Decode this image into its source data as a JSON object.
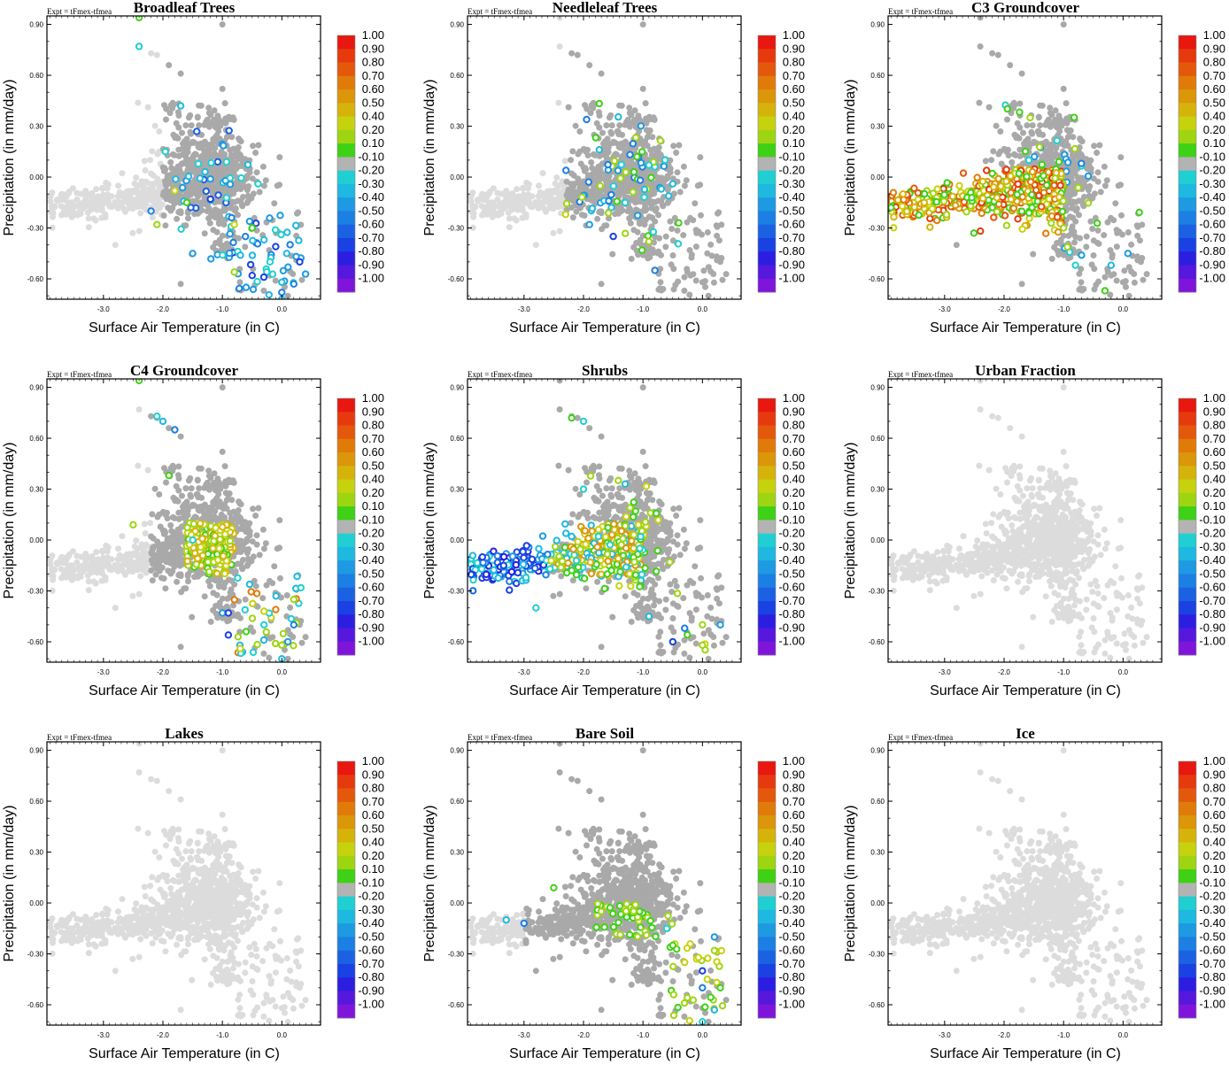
{
  "figure": {
    "expt_label": "Expt = tFmex-tfmea",
    "colorbar": {
      "levels": [
        "1.00",
        "0.90",
        "0.80",
        "0.70",
        "0.60",
        "0.50",
        "0.40",
        "0.20",
        "0.10",
        "-0.10",
        "-0.20",
        "-0.30",
        "-0.40",
        "-0.50",
        "-0.60",
        "-0.70",
        "-0.80",
        "-0.90",
        "-1.00"
      ],
      "colors": [
        "#e8170f",
        "#e63a0e",
        "#e4580c",
        "#e07b0a",
        "#db960a",
        "#d6b30b",
        "#c6d20d",
        "#9ed512",
        "#3ed115",
        "#b3b3b3",
        "#20cfd2",
        "#1fb8e0",
        "#1d9ae2",
        "#1c7fe3",
        "#1b62e3",
        "#1a41e2",
        "#2c1ee0",
        "#5618dd",
        "#7f15da"
      ]
    }
  },
  "chart_data": [
    {
      "type": "scatter",
      "title": "Broadleaf Trees",
      "xlabel": "Surface Air Temperature (in C)",
      "ylabel": "Precipitation (in mm/day)",
      "xlim": [
        -3.95,
        0.65
      ],
      "ylim": [
        -0.72,
        0.95
      ],
      "xticks": [
        "-3.0",
        "-2.0",
        "-1.0",
        "0.0"
      ],
      "yticks": [
        "0.90",
        "0.60",
        "0.30",
        "0.00",
        "-0.30",
        "-0.60"
      ],
      "scheme": "broadleaf",
      "highlighted_points": [
        [
          -2.4,
          0.94
        ],
        [
          -2.4,
          0.77
        ],
        [
          -1.7,
          0.42
        ],
        [
          -2.2,
          -0.2
        ],
        [
          -2.1,
          -0.28
        ],
        [
          -1.5,
          -0.45
        ],
        [
          -1.2,
          -0.13
        ],
        [
          -0.8,
          -0.28
        ],
        [
          -0.5,
          -0.3
        ],
        [
          -0.2,
          -0.5
        ],
        [
          0.0,
          -0.72
        ],
        [
          0.2,
          -0.63
        ],
        [
          -0.8,
          -0.56
        ],
        [
          -0.6,
          -0.65
        ],
        [
          -0.5,
          -0.58
        ],
        [
          -1.8,
          -0.08
        ],
        [
          -1.6,
          -0.15
        ],
        [
          -0.4,
          -0.04
        ],
        [
          -0.3,
          -0.37
        ],
        [
          0.0,
          -0.68
        ]
      ]
    },
    {
      "type": "scatter",
      "title": "Needleleaf Trees",
      "xlabel": "Surface Air Temperature (in C)",
      "ylabel": "Precipitation (in mm/day)",
      "xlim": [
        -3.95,
        0.65
      ],
      "ylim": [
        -0.72,
        0.95
      ],
      "xticks": [
        "-3.0",
        "-2.0",
        "-1.0",
        "0.0"
      ],
      "yticks": [
        "0.90",
        "0.60",
        "0.30",
        "0.00",
        "-0.30",
        "-0.60"
      ],
      "scheme": "needleleaf",
      "highlighted_points": [
        [
          -1.1,
          0.12
        ],
        [
          -0.9,
          0.07
        ],
        [
          -0.5,
          -0.04
        ],
        [
          -0.8,
          -0.55
        ],
        [
          -0.9,
          -0.38
        ],
        [
          -1.9,
          -0.28
        ],
        [
          -1.5,
          -0.35
        ],
        [
          -2.3,
          -0.22
        ],
        [
          -0.4,
          -0.27
        ],
        [
          -1.3,
          -0.15
        ]
      ]
    },
    {
      "type": "scatter",
      "title": "C3 Groundcover",
      "xlabel": "Surface Air Temperature (in C)",
      "ylabel": "Precipitation (in mm/day)",
      "xlim": [
        -3.95,
        0.65
      ],
      "ylim": [
        -0.72,
        0.95
      ],
      "xticks": [
        "-3.0",
        "-2.0",
        "-1.0",
        "0.0"
      ],
      "yticks": [
        "0.90",
        "0.60",
        "0.30",
        "0.00",
        "-0.30",
        "-0.60"
      ],
      "scheme": "c3",
      "highlighted_points": [
        [
          -3.9,
          -0.18
        ],
        [
          -0.8,
          -0.52
        ],
        [
          -0.2,
          -0.52
        ],
        [
          -0.7,
          0.08
        ],
        [
          -1.0,
          -0.3
        ]
      ]
    },
    {
      "type": "scatter",
      "title": "C4 Groundcover",
      "xlabel": "Surface Air Temperature (in C)",
      "ylabel": "Precipitation (in mm/day)",
      "xlim": [
        -3.95,
        0.65
      ],
      "ylim": [
        -0.72,
        0.95
      ],
      "xticks": [
        "-3.0",
        "-2.0",
        "-1.0",
        "0.0"
      ],
      "yticks": [
        "0.90",
        "0.60",
        "0.30",
        "0.00",
        "-0.30",
        "-0.60"
      ],
      "scheme": "c4",
      "highlighted_points": [
        [
          -2.4,
          0.94
        ],
        [
          -2.1,
          0.73
        ],
        [
          -2.0,
          0.7
        ],
        [
          -1.8,
          0.65
        ],
        [
          -2.5,
          0.09
        ],
        [
          -1.0,
          -0.43
        ],
        [
          -0.9,
          -0.43
        ],
        [
          -0.7,
          -0.64
        ],
        [
          -0.6,
          -0.54
        ],
        [
          -0.3,
          -0.5
        ],
        [
          0.0,
          -0.7
        ],
        [
          0.2,
          -0.5
        ],
        [
          0.2,
          -0.35
        ],
        [
          0.1,
          -0.6
        ],
        [
          -0.9,
          -0.56
        ],
        [
          -0.3,
          -0.42
        ],
        [
          -1.9,
          0.38
        ],
        [
          -1.5,
          0.0
        ]
      ]
    },
    {
      "type": "scatter",
      "title": "Shrubs",
      "xlabel": "Surface Air Temperature (in C)",
      "ylabel": "Precipitation (in mm/day)",
      "xlim": [
        -3.95,
        0.65
      ],
      "ylim": [
        -0.72,
        0.95
      ],
      "xticks": [
        "-3.0",
        "-2.0",
        "-1.0",
        "0.0"
      ],
      "yticks": [
        "0.90",
        "0.60",
        "0.30",
        "0.00",
        "-0.30",
        "-0.60"
      ],
      "scheme": "shrubs",
      "highlighted_points": [
        [
          -2.2,
          0.72
        ],
        [
          -2.0,
          0.7
        ],
        [
          -1.3,
          0.33
        ],
        [
          -0.3,
          -0.52
        ],
        [
          0.0,
          -0.5
        ],
        [
          0.3,
          -0.5
        ],
        [
          -0.5,
          -0.6
        ],
        [
          -1.4,
          -0.27
        ],
        [
          -1.6,
          -0.2
        ],
        [
          -2.0,
          0.3
        ],
        [
          -0.9,
          -0.45
        ]
      ]
    },
    {
      "type": "scatter",
      "title": "Urban Fraction",
      "xlabel": "Surface Air Temperature (in C)",
      "ylabel": "Precipitation (in mm/day)",
      "xlim": [
        -3.95,
        0.65
      ],
      "ylim": [
        -0.72,
        0.95
      ],
      "xticks": [
        "-3.0",
        "-2.0",
        "-1.0",
        "0.0"
      ],
      "yticks": [
        "0.90",
        "0.60",
        "0.30",
        "0.00",
        "-0.30",
        "-0.60"
      ],
      "scheme": "none",
      "highlighted_points": []
    },
    {
      "type": "scatter",
      "title": "Lakes",
      "xlabel": "Surface Air Temperature (in C)",
      "ylabel": "Precipitation (in mm/day)",
      "xlim": [
        -3.95,
        0.65
      ],
      "ylim": [
        -0.72,
        0.95
      ],
      "xticks": [
        "-3.0",
        "-2.0",
        "-1.0",
        "0.0"
      ],
      "yticks": [
        "0.90",
        "0.60",
        "0.30",
        "0.00",
        "-0.30",
        "-0.60"
      ],
      "scheme": "none",
      "highlighted_points": []
    },
    {
      "type": "scatter",
      "title": "Bare Soil",
      "xlabel": "Surface Air Temperature (in C)",
      "ylabel": "Precipitation (in mm/day)",
      "xlim": [
        -3.95,
        0.65
      ],
      "ylim": [
        -0.72,
        0.95
      ],
      "xticks": [
        "-3.0",
        "-2.0",
        "-1.0",
        "0.0"
      ],
      "yticks": [
        "0.90",
        "0.60",
        "0.30",
        "0.00",
        "-0.30",
        "-0.60"
      ],
      "scheme": "baresoil",
      "highlighted_points": [
        [
          -2.5,
          0.09
        ],
        [
          0.0,
          -0.7
        ],
        [
          0.2,
          -0.63
        ],
        [
          0.0,
          -0.5
        ],
        [
          0.2,
          -0.28
        ],
        [
          0.2,
          -0.2
        ],
        [
          0.0,
          -0.4
        ],
        [
          -0.3,
          -0.35
        ],
        [
          -0.5,
          -0.25
        ],
        [
          -0.6,
          -0.15
        ],
        [
          -3.3,
          -0.1
        ],
        [
          -3.0,
          -0.12
        ],
        [
          -1.7,
          -0.05
        ]
      ]
    },
    {
      "type": "scatter",
      "title": "Ice",
      "xlabel": "Surface Air Temperature (in C)",
      "ylabel": "Precipitation (in mm/day)",
      "xlim": [
        -3.95,
        0.65
      ],
      "ylim": [
        -0.72,
        0.95
      ],
      "xticks": [
        "-3.0",
        "-2.0",
        "-1.0",
        "0.0"
      ],
      "yticks": [
        "0.90",
        "0.60",
        "0.30",
        "0.00",
        "-0.30",
        "-0.60"
      ],
      "scheme": "none",
      "highlighted_points": []
    }
  ]
}
